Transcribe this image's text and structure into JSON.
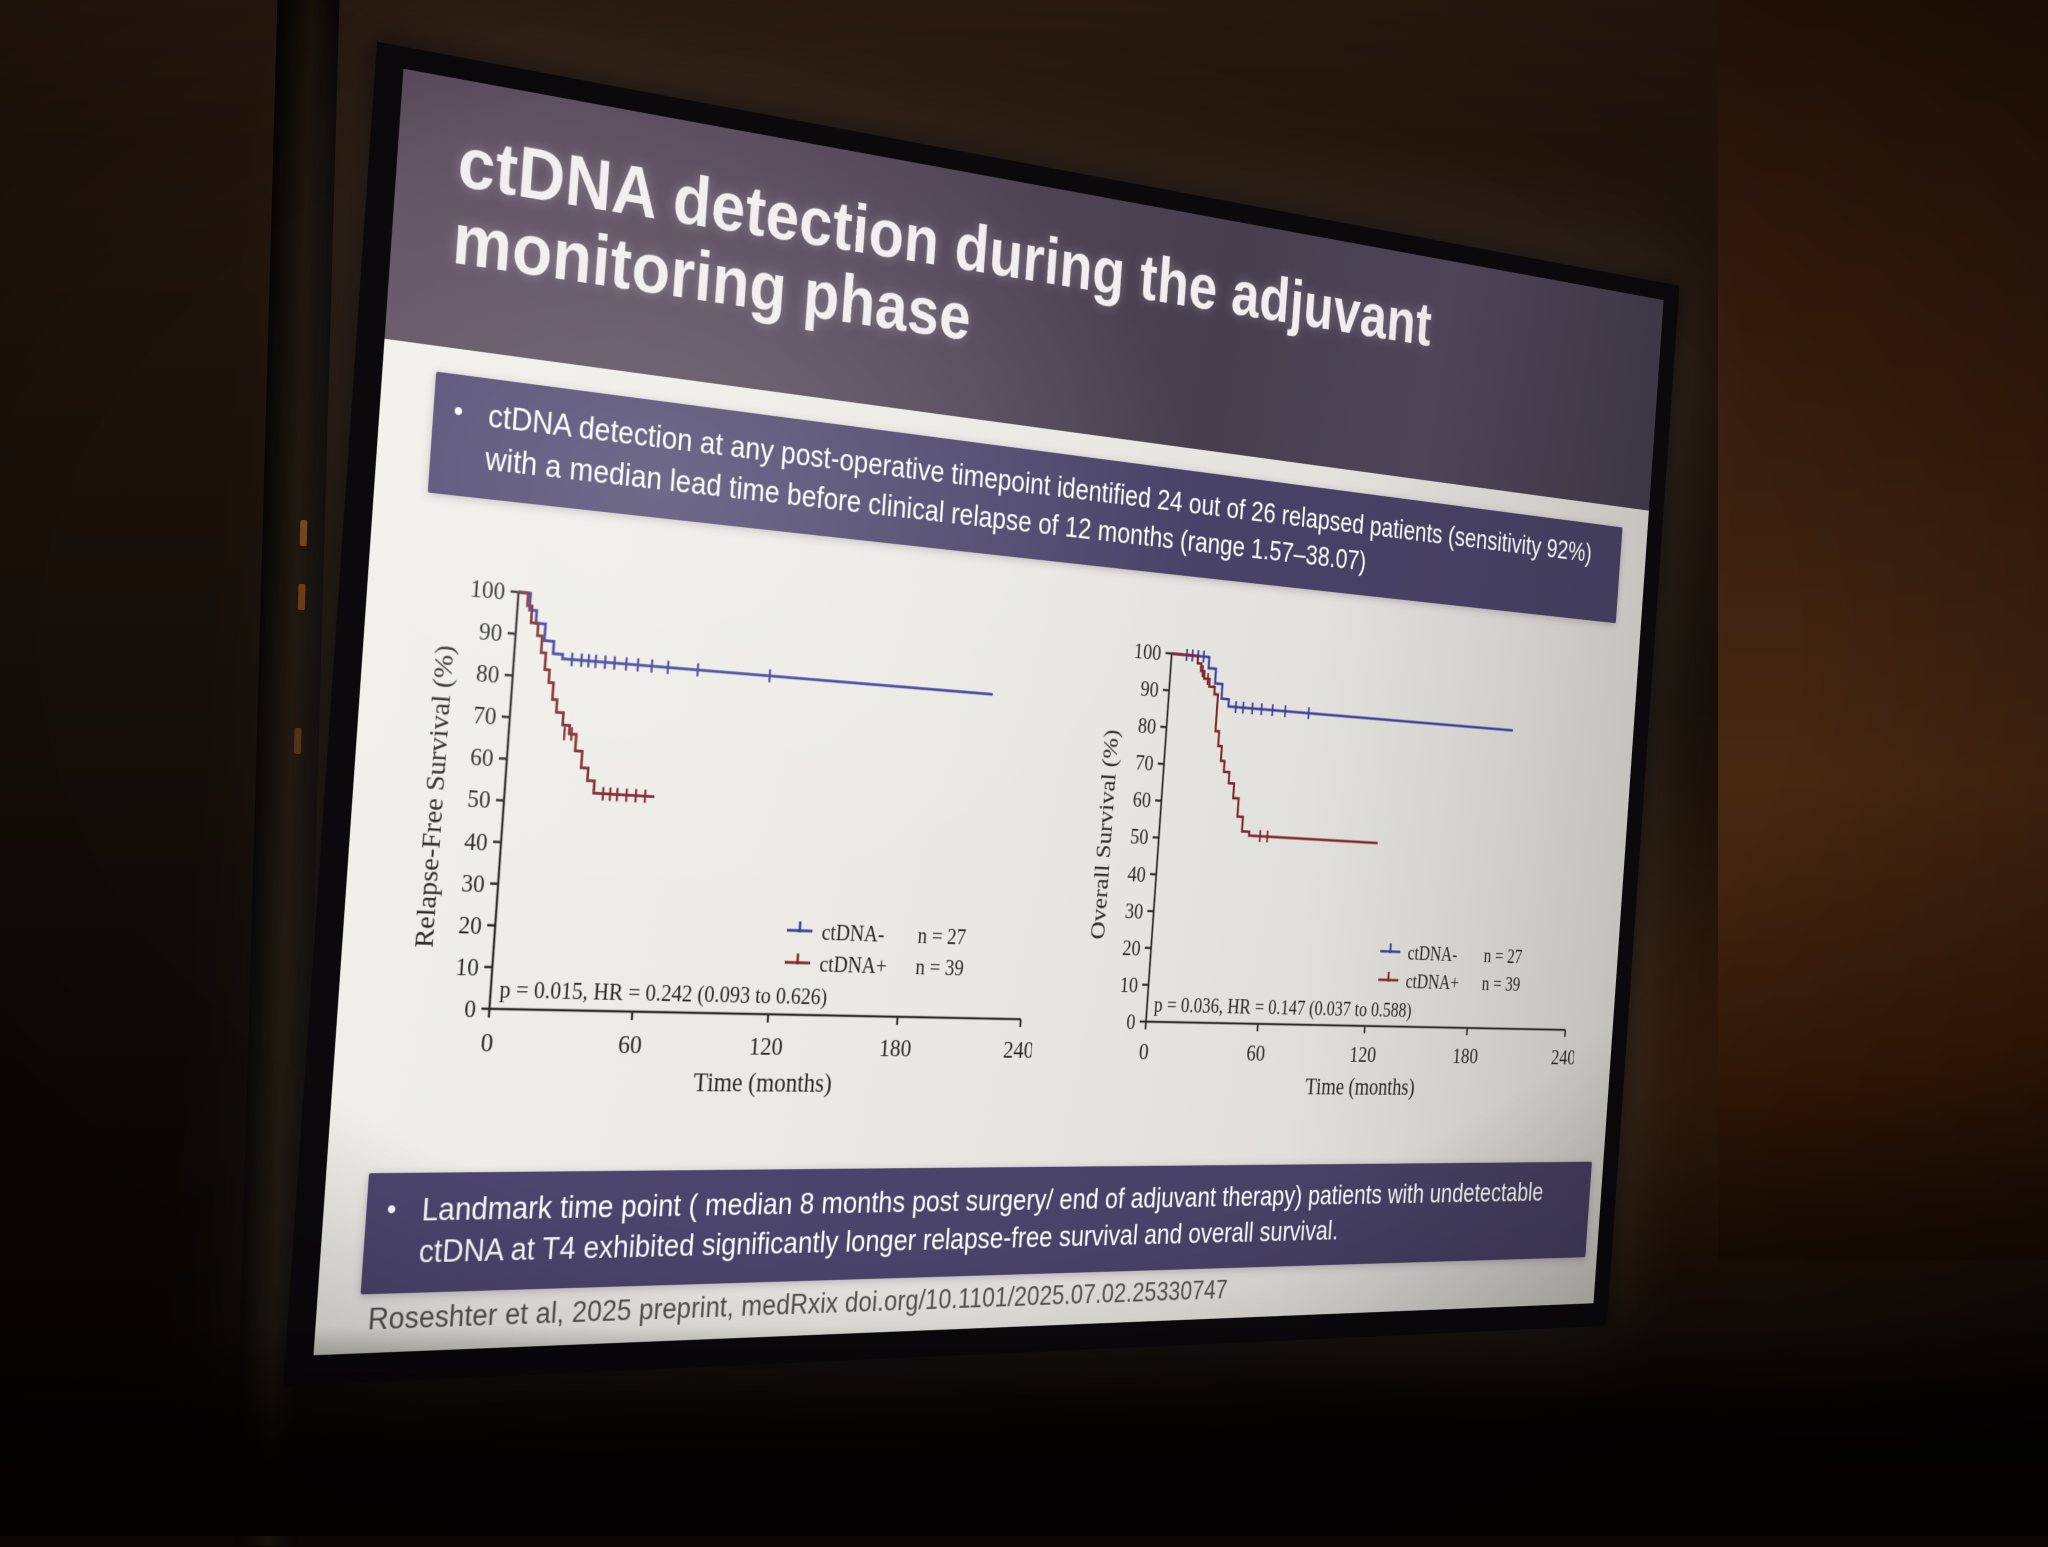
{
  "slide": {
    "title": "ctDNA detection during the adjuvant monitoring phase",
    "bullet_marker": "•",
    "bullet1": "ctDNA detection at any post-operative timepoint identified 24 out of 26 relapsed patients (sensitivity 92%) with a median lead time before clinical relapse of 12 months (range 1.57–38.07)",
    "bullet2": "Landmark time point ( median 8 months post surgery/ end of adjuvant therapy) patients with undetectable ctDNA at T4 exhibited significantly longer relapse-free survival and overall survival.",
    "citation": "Roseshter et al, 2025 preprint, medRxix doi.org/10.1101/2025.07.02.25330747"
  },
  "colors": {
    "ctdna_negative_curve": "#3c3f9d",
    "ctdna_positive_curve": "#7e262e",
    "bullet_bar_bg": "#4a4368",
    "header_bg": "#4e4453",
    "slide_bg": "#e9e8e2",
    "axis_text": "#2b2a28"
  },
  "chart_data": [
    {
      "type": "line",
      "subtype": "kaplan-meier",
      "ylabel": "Relapse-Free Survival (%)",
      "xlabel": "Time (months)",
      "xlim": [
        0,
        240
      ],
      "ylim": [
        0,
        100
      ],
      "xticks": [
        0,
        60,
        120,
        180,
        240
      ],
      "yticks": [
        0,
        10,
        20,
        30,
        40,
        50,
        60,
        70,
        80,
        90,
        100
      ],
      "annotation": "p = 0.015, HR = 0.242 (0.093 to 0.626)",
      "grid": false,
      "legend_position": "lower right",
      "series": [
        {
          "name": "ctDNA-",
          "n_label": "n = 27",
          "color": "#3c3f9d",
          "steps": [
            [
              0,
              100
            ],
            [
              5,
              96
            ],
            [
              8,
              93
            ],
            [
              12,
              89
            ],
            [
              16,
              86
            ],
            [
              20,
              85
            ],
            [
              215,
              85
            ]
          ],
          "censors": [
            [
              24,
              85
            ],
            [
              28,
              85
            ],
            [
              31,
              85
            ],
            [
              34,
              85
            ],
            [
              38,
              85
            ],
            [
              42,
              85
            ],
            [
              47,
              85
            ],
            [
              52,
              85
            ],
            [
              58,
              85
            ],
            [
              65,
              85
            ],
            [
              78,
              85
            ],
            [
              110,
              85
            ]
          ]
        },
        {
          "name": "ctDNA+",
          "n_label": "n = 39",
          "color": "#7e262e",
          "steps": [
            [
              0,
              100
            ],
            [
              4,
              97
            ],
            [
              6,
              93
            ],
            [
              9,
              90
            ],
            [
              11,
              86
            ],
            [
              13,
              82
            ],
            [
              15,
              79
            ],
            [
              17,
              75
            ],
            [
              19,
              72
            ],
            [
              22,
              69
            ],
            [
              25,
              67
            ],
            [
              28,
              63
            ],
            [
              31,
              59
            ],
            [
              34,
              56
            ],
            [
              37,
              53
            ],
            [
              63,
              53
            ]
          ],
          "censors": [
            [
              23,
              67
            ],
            [
              26,
              67
            ],
            [
              41,
              53
            ],
            [
              44,
              53
            ],
            [
              47,
              53
            ],
            [
              51,
              53
            ],
            [
              55,
              53
            ],
            [
              59,
              53
            ]
          ]
        }
      ]
    },
    {
      "type": "line",
      "subtype": "kaplan-meier",
      "ylabel": "Overall Survival (%)",
      "xlabel": "Time (months)",
      "xlim": [
        0,
        240
      ],
      "ylim": [
        0,
        100
      ],
      "xticks": [
        0,
        60,
        120,
        180,
        240
      ],
      "yticks": [
        0,
        10,
        20,
        30,
        40,
        50,
        60,
        70,
        80,
        90,
        100
      ],
      "annotation": "p = 0.036, HR = 0.147 (0.037 to 0.588)",
      "grid": false,
      "legend_position": "lower right",
      "series": [
        {
          "name": "ctDNA-",
          "n_label": "n = 27",
          "color": "#3c3f9d",
          "steps": [
            [
              0,
              100
            ],
            [
              20,
              97
            ],
            [
              24,
              93
            ],
            [
              28,
              89
            ],
            [
              32,
              87
            ],
            [
              195,
              87
            ]
          ],
          "censors": [
            [
              8,
              100
            ],
            [
              11,
              100
            ],
            [
              14,
              100
            ],
            [
              17,
              100
            ],
            [
              36,
              87
            ],
            [
              40,
              87
            ],
            [
              45,
              87
            ],
            [
              50,
              87
            ],
            [
              56,
              87
            ],
            [
              63,
              87
            ],
            [
              76,
              87
            ]
          ]
        },
        {
          "name": "ctDNA+",
          "n_label": "n = 39",
          "color": "#7e262e",
          "steps": [
            [
              0,
              100
            ],
            [
              14,
              98
            ],
            [
              16,
              96
            ],
            [
              18,
              94
            ],
            [
              21,
              92
            ],
            [
              24,
              90
            ],
            [
              26,
              80
            ],
            [
              28,
              76
            ],
            [
              30,
              72
            ],
            [
              32,
              69
            ],
            [
              35,
              66
            ],
            [
              38,
              62
            ],
            [
              41,
              57
            ],
            [
              44,
              53
            ],
            [
              48,
              52
            ],
            [
              120,
              52
            ]
          ],
          "censors": [
            [
              17,
              96
            ],
            [
              20,
              94
            ],
            [
              54,
              52
            ],
            [
              58,
              52
            ]
          ]
        }
      ]
    }
  ]
}
